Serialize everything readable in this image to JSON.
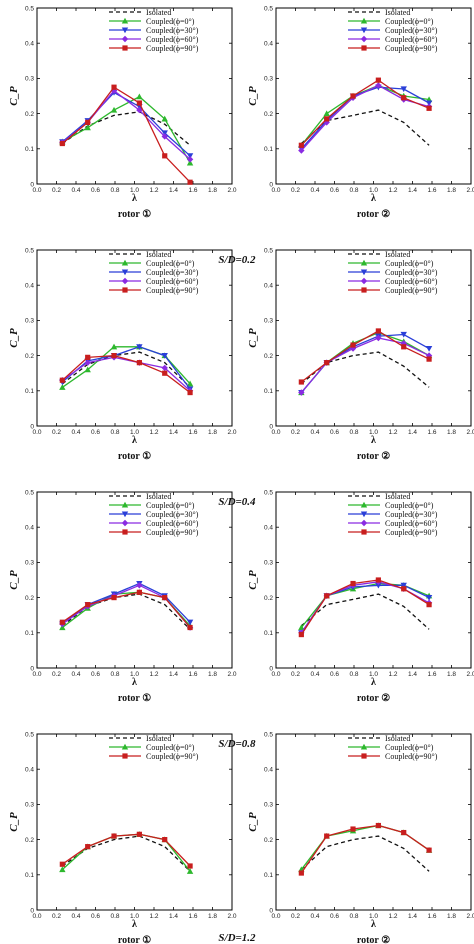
{
  "chart_data": [
    {
      "type": "line",
      "panel_label": "rotor ①",
      "group_caption": "",
      "xlabel": "λ",
      "ylabel": "C_P",
      "xlim": [
        0,
        2
      ],
      "ylim": [
        0,
        0.5
      ],
      "xticks": [
        0.0,
        0.2,
        0.4,
        0.6,
        0.8,
        1.0,
        1.2,
        1.4,
        1.6,
        1.8,
        2.0
      ],
      "yticks": [
        0,
        0.1,
        0.2,
        0.3,
        0.4,
        0.5
      ],
      "series": [
        {
          "name": "Isolated",
          "x": [
            0.26,
            0.52,
            0.79,
            1.05,
            1.31,
            1.57
          ],
          "y": [
            0.115,
            0.165,
            0.195,
            0.205,
            0.17,
            0.11
          ]
        },
        {
          "name": "Coupled(ϕ=0°)",
          "x": [
            0.26,
            0.52,
            0.79,
            1.05,
            1.31,
            1.57
          ],
          "y": [
            0.12,
            0.16,
            0.21,
            0.248,
            0.185,
            0.06
          ]
        },
        {
          "name": "Coupled(ϕ=30°)",
          "x": [
            0.26,
            0.52,
            0.79,
            1.05,
            1.31,
            1.57
          ],
          "y": [
            0.12,
            0.18,
            0.26,
            0.22,
            0.145,
            0.08
          ]
        },
        {
          "name": "Coupled(ϕ=60°)",
          "x": [
            0.26,
            0.52,
            0.79,
            1.05,
            1.31,
            1.57
          ],
          "y": [
            0.118,
            0.175,
            0.265,
            0.21,
            0.135,
            0.07
          ]
        },
        {
          "name": "Coupled(ϕ=90°)",
          "x": [
            0.26,
            0.52,
            0.79,
            1.05,
            1.31,
            1.57
          ],
          "y": [
            0.115,
            0.175,
            0.275,
            0.23,
            0.08,
            0.005
          ]
        }
      ]
    },
    {
      "type": "line",
      "panel_label": "rotor ②",
      "group_caption": "S/D=0.2",
      "xlabel": "λ",
      "ylabel": "C_P",
      "xlim": [
        0,
        2
      ],
      "ylim": [
        0,
        0.5
      ],
      "xticks": [
        0.0,
        0.2,
        0.4,
        0.6,
        0.8,
        1.0,
        1.2,
        1.4,
        1.6,
        1.8,
        2.0
      ],
      "yticks": [
        0,
        0.1,
        0.2,
        0.3,
        0.4,
        0.5
      ],
      "series": [
        {
          "name": "Isolated",
          "x": [
            0.26,
            0.52,
            0.79,
            1.05,
            1.31,
            1.57
          ],
          "y": [
            0.115,
            0.18,
            0.195,
            0.21,
            0.175,
            0.11
          ]
        },
        {
          "name": "Coupled(ϕ=0°)",
          "x": [
            0.26,
            0.52,
            0.79,
            1.05,
            1.31,
            1.57
          ],
          "y": [
            0.11,
            0.2,
            0.25,
            0.28,
            0.25,
            0.24
          ]
        },
        {
          "name": "Coupled(ϕ=30°)",
          "x": [
            0.26,
            0.52,
            0.79,
            1.05,
            1.31,
            1.57
          ],
          "y": [
            0.1,
            0.18,
            0.25,
            0.275,
            0.27,
            0.23
          ]
        },
        {
          "name": "Coupled(ϕ=60°)",
          "x": [
            0.26,
            0.52,
            0.79,
            1.05,
            1.31,
            1.57
          ],
          "y": [
            0.095,
            0.175,
            0.245,
            0.28,
            0.24,
            0.22
          ]
        },
        {
          "name": "Coupled(ϕ=90°)",
          "x": [
            0.26,
            0.52,
            0.79,
            1.05,
            1.31,
            1.57
          ],
          "y": [
            0.11,
            0.185,
            0.25,
            0.295,
            0.245,
            0.215
          ]
        }
      ]
    },
    {
      "type": "line",
      "panel_label": "rotor ①",
      "group_caption": "",
      "xlabel": "λ",
      "ylabel": "C_P",
      "xlim": [
        0,
        2
      ],
      "ylim": [
        0,
        0.5
      ],
      "xticks": [
        0.0,
        0.2,
        0.4,
        0.6,
        0.8,
        1.0,
        1.2,
        1.4,
        1.6,
        1.8,
        2.0
      ],
      "yticks": [
        0,
        0.1,
        0.2,
        0.3,
        0.4,
        0.5
      ],
      "series": [
        {
          "name": "Isolated",
          "x": [
            0.26,
            0.52,
            0.79,
            1.05,
            1.31,
            1.57
          ],
          "y": [
            0.12,
            0.175,
            0.2,
            0.21,
            0.18,
            0.11
          ]
        },
        {
          "name": "Coupled(ϕ=0°)",
          "x": [
            0.26,
            0.52,
            0.79,
            1.05,
            1.31,
            1.57
          ],
          "y": [
            0.11,
            0.16,
            0.225,
            0.225,
            0.2,
            0.12
          ]
        },
        {
          "name": "Coupled(ϕ=30°)",
          "x": [
            0.26,
            0.52,
            0.79,
            1.05,
            1.31,
            1.57
          ],
          "y": [
            0.125,
            0.185,
            0.2,
            0.225,
            0.2,
            0.105
          ]
        },
        {
          "name": "Coupled(ϕ=60°)",
          "x": [
            0.26,
            0.52,
            0.79,
            1.05,
            1.31,
            1.57
          ],
          "y": [
            0.13,
            0.18,
            0.195,
            0.18,
            0.165,
            0.1
          ]
        },
        {
          "name": "Coupled(ϕ=90°)",
          "x": [
            0.26,
            0.52,
            0.79,
            1.05,
            1.31,
            1.57
          ],
          "y": [
            0.13,
            0.195,
            0.2,
            0.18,
            0.15,
            0.095
          ]
        }
      ]
    },
    {
      "type": "line",
      "panel_label": "rotor ②",
      "group_caption": "S/D=0.4",
      "xlabel": "λ",
      "ylabel": "C_P",
      "xlim": [
        0,
        2
      ],
      "ylim": [
        0,
        0.5
      ],
      "xticks": [
        0.0,
        0.2,
        0.4,
        0.6,
        0.8,
        1.0,
        1.2,
        1.4,
        1.6,
        1.8,
        2.0
      ],
      "yticks": [
        0,
        0.1,
        0.2,
        0.3,
        0.4,
        0.5
      ],
      "series": [
        {
          "name": "Isolated",
          "x": [
            0.26,
            0.52,
            0.79,
            1.05,
            1.31,
            1.57
          ],
          "y": [
            0.12,
            0.18,
            0.2,
            0.21,
            0.17,
            0.11
          ]
        },
        {
          "name": "Coupled(ϕ=0°)",
          "x": [
            0.26,
            0.52,
            0.79,
            1.05,
            1.31,
            1.57
          ],
          "y": [
            0.095,
            0.18,
            0.235,
            0.265,
            0.24,
            0.2
          ]
        },
        {
          "name": "Coupled(ϕ=30°)",
          "x": [
            0.26,
            0.52,
            0.79,
            1.05,
            1.31,
            1.57
          ],
          "y": [
            0.095,
            0.18,
            0.225,
            0.255,
            0.26,
            0.22
          ]
        },
        {
          "name": "Coupled(ϕ=60°)",
          "x": [
            0.26,
            0.52,
            0.79,
            1.05,
            1.31,
            1.57
          ],
          "y": [
            0.095,
            0.18,
            0.22,
            0.25,
            0.235,
            0.2
          ]
        },
        {
          "name": "Coupled(ϕ=90°)",
          "x": [
            0.26,
            0.52,
            0.79,
            1.05,
            1.31,
            1.57
          ],
          "y": [
            0.125,
            0.18,
            0.23,
            0.27,
            0.225,
            0.19
          ]
        }
      ]
    },
    {
      "type": "line",
      "panel_label": "rotor ①",
      "group_caption": "",
      "xlabel": "λ",
      "ylabel": "C_P",
      "xlim": [
        0,
        2
      ],
      "ylim": [
        0,
        0.5
      ],
      "xticks": [
        0.0,
        0.2,
        0.4,
        0.6,
        0.8,
        1.0,
        1.2,
        1.4,
        1.6,
        1.8,
        2.0
      ],
      "yticks": [
        0,
        0.1,
        0.2,
        0.3,
        0.4,
        0.5
      ],
      "series": [
        {
          "name": "Isolated",
          "x": [
            0.26,
            0.52,
            0.79,
            1.05,
            1.31,
            1.57
          ],
          "y": [
            0.12,
            0.175,
            0.2,
            0.21,
            0.18,
            0.11
          ]
        },
        {
          "name": "Coupled(ϕ=0°)",
          "x": [
            0.26,
            0.52,
            0.79,
            1.05,
            1.31,
            1.57
          ],
          "y": [
            0.115,
            0.17,
            0.21,
            0.215,
            0.2,
            0.12
          ]
        },
        {
          "name": "Coupled(ϕ=30°)",
          "x": [
            0.26,
            0.52,
            0.79,
            1.05,
            1.31,
            1.57
          ],
          "y": [
            0.125,
            0.18,
            0.21,
            0.24,
            0.205,
            0.13
          ]
        },
        {
          "name": "Coupled(ϕ=60°)",
          "x": [
            0.26,
            0.52,
            0.79,
            1.05,
            1.31,
            1.57
          ],
          "y": [
            0.125,
            0.175,
            0.205,
            0.235,
            0.2,
            0.115
          ]
        },
        {
          "name": "Coupled(ϕ=90°)",
          "x": [
            0.26,
            0.52,
            0.79,
            1.05,
            1.31,
            1.57
          ],
          "y": [
            0.13,
            0.18,
            0.2,
            0.215,
            0.2,
            0.115
          ]
        }
      ]
    },
    {
      "type": "line",
      "panel_label": "rotor ②",
      "group_caption": "S/D=0.8",
      "xlabel": "λ",
      "ylabel": "C_P",
      "xlim": [
        0,
        2
      ],
      "ylim": [
        0,
        0.5
      ],
      "xticks": [
        0.0,
        0.2,
        0.4,
        0.6,
        0.8,
        1.0,
        1.2,
        1.4,
        1.6,
        1.8,
        2.0
      ],
      "yticks": [
        0,
        0.1,
        0.2,
        0.3,
        0.4,
        0.5
      ],
      "series": [
        {
          "name": "Isolated",
          "x": [
            0.26,
            0.52,
            0.79,
            1.05,
            1.31,
            1.57
          ],
          "y": [
            0.12,
            0.18,
            0.195,
            0.21,
            0.175,
            0.11
          ]
        },
        {
          "name": "Coupled(ϕ=0°)",
          "x": [
            0.26,
            0.52,
            0.79,
            1.05,
            1.31,
            1.57
          ],
          "y": [
            0.115,
            0.205,
            0.225,
            0.24,
            0.235,
            0.205
          ]
        },
        {
          "name": "Coupled(ϕ=30°)",
          "x": [
            0.26,
            0.52,
            0.79,
            1.05,
            1.31,
            1.57
          ],
          "y": [
            0.1,
            0.205,
            0.23,
            0.235,
            0.235,
            0.2
          ]
        },
        {
          "name": "Coupled(ϕ=60°)",
          "x": [
            0.26,
            0.52,
            0.79,
            1.05,
            1.31,
            1.57
          ],
          "y": [
            0.1,
            0.205,
            0.235,
            0.245,
            0.225,
            0.185
          ]
        },
        {
          "name": "Coupled(ϕ=90°)",
          "x": [
            0.26,
            0.52,
            0.79,
            1.05,
            1.31,
            1.57
          ],
          "y": [
            0.095,
            0.205,
            0.24,
            0.25,
            0.225,
            0.18
          ]
        }
      ]
    },
    {
      "type": "line",
      "panel_label": "rotor ①",
      "group_caption": "",
      "xlabel": "λ",
      "ylabel": "C_P",
      "xlim": [
        0,
        2
      ],
      "ylim": [
        0,
        0.5
      ],
      "xticks": [
        0.0,
        0.2,
        0.4,
        0.6,
        0.8,
        1.0,
        1.2,
        1.4,
        1.6,
        1.8,
        2.0
      ],
      "yticks": [
        0,
        0.1,
        0.2,
        0.3,
        0.4,
        0.5
      ],
      "series": [
        {
          "name": "Isolated",
          "x": [
            0.26,
            0.52,
            0.79,
            1.05,
            1.31,
            1.57
          ],
          "y": [
            0.125,
            0.175,
            0.2,
            0.21,
            0.18,
            0.11
          ]
        },
        {
          "name": "Coupled(ϕ=0°)",
          "x": [
            0.26,
            0.52,
            0.79,
            1.05,
            1.31,
            1.57
          ],
          "y": [
            0.115,
            0.18,
            0.21,
            0.215,
            0.2,
            0.11
          ]
        },
        {
          "name": "Coupled(ϕ=90°)",
          "x": [
            0.26,
            0.52,
            0.79,
            1.05,
            1.31,
            1.57
          ],
          "y": [
            0.13,
            0.18,
            0.21,
            0.215,
            0.2,
            0.125
          ]
        }
      ]
    },
    {
      "type": "line",
      "panel_label": "rotor ②",
      "group_caption": "S/D=1.2",
      "xlabel": "λ",
      "ylabel": "C_P",
      "xlim": [
        0,
        2
      ],
      "ylim": [
        0,
        0.5
      ],
      "xticks": [
        0.0,
        0.2,
        0.4,
        0.6,
        0.8,
        1.0,
        1.2,
        1.4,
        1.6,
        1.8,
        2.0
      ],
      "yticks": [
        0,
        0.1,
        0.2,
        0.3,
        0.4,
        0.5
      ],
      "series": [
        {
          "name": "Isolated",
          "x": [
            0.26,
            0.52,
            0.79,
            1.05,
            1.31,
            1.57
          ],
          "y": [
            0.115,
            0.18,
            0.2,
            0.21,
            0.175,
            0.11
          ]
        },
        {
          "name": "Coupled(ϕ=0°)",
          "x": [
            0.26,
            0.52,
            0.79,
            1.05,
            1.31,
            1.57
          ],
          "y": [
            0.115,
            0.21,
            0.225,
            0.24,
            0.22,
            0.17
          ]
        },
        {
          "name": "Coupled(ϕ=90°)",
          "x": [
            0.26,
            0.52,
            0.79,
            1.05,
            1.31,
            1.57
          ],
          "y": [
            0.105,
            0.21,
            0.23,
            0.24,
            0.22,
            0.17
          ]
        }
      ]
    }
  ],
  "series_styles": {
    "Isolated": {
      "color": "#111111",
      "dash": "4,3",
      "marker": "none"
    },
    "Coupled(ϕ=0°)": {
      "color": "#2db82d",
      "dash": "",
      "marker": "triangle-up"
    },
    "Coupled(ϕ=30°)": {
      "color": "#2a3fd8",
      "dash": "",
      "marker": "triangle-down"
    },
    "Coupled(ϕ=60°)": {
      "color": "#8a2be2",
      "dash": "",
      "marker": "diamond"
    },
    "Coupled(ϕ=90°)": {
      "color": "#c81e1e",
      "dash": "",
      "marker": "square"
    }
  }
}
